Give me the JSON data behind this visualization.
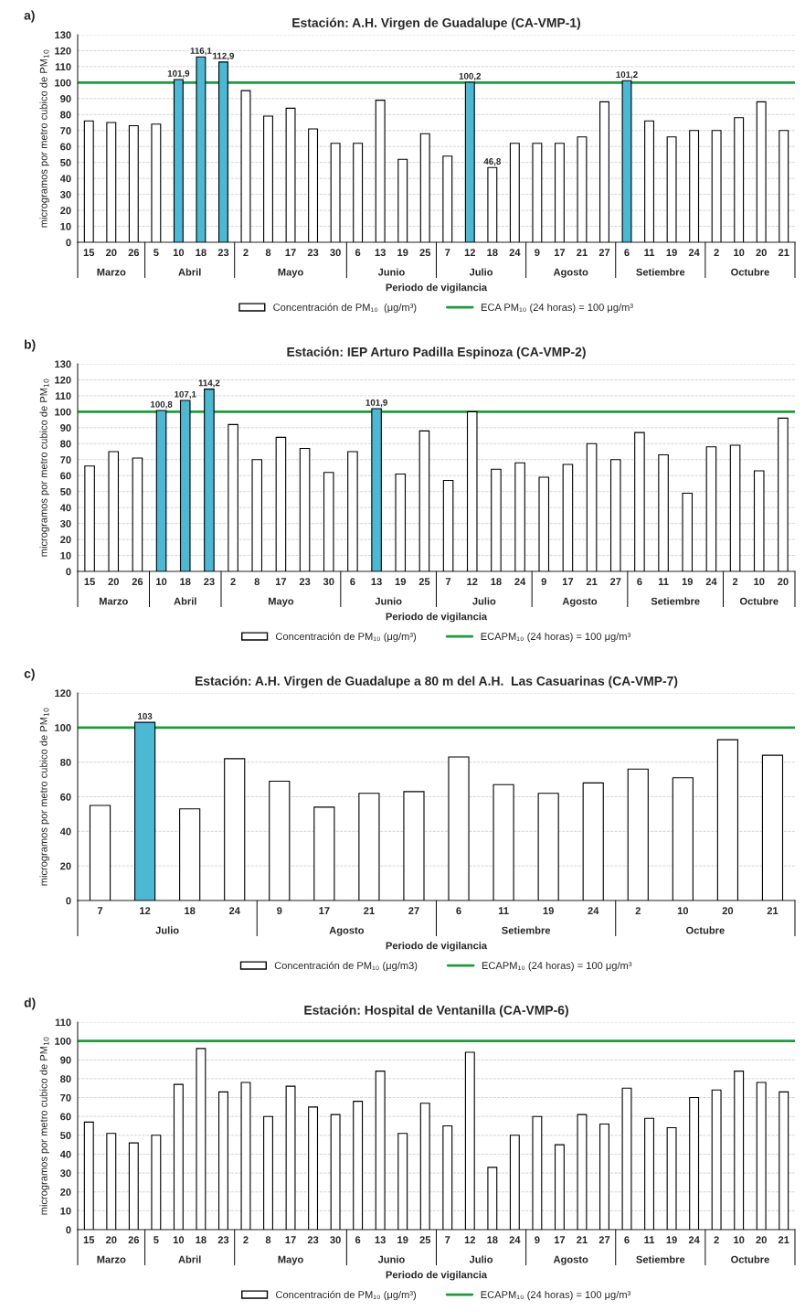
{
  "chart_data": [
    {
      "type": "bar",
      "title": "Estación: A.H. Virgen de Guadalupe (CA-VMP-1)",
      "xlabel": "Periodo de vigilancia",
      "ylabel": "microgramos por metro cubico de PM$_{10}$",
      "categories": [
        "15",
        "20",
        "26",
        "5",
        "10",
        "18",
        "23",
        "2",
        "8",
        "17",
        "23",
        "30",
        "6",
        "13",
        "19",
        "25",
        "7",
        "12",
        "18",
        "24",
        "9",
        "17",
        "21",
        "27",
        "6",
        "11",
        "19",
        "24",
        "2",
        "10",
        "20",
        "21"
      ],
      "series": [
        {
          "name": "Concentración de PM₁₀  (μg/m³)",
          "colors": [
            "#ffffff",
            "#ffffff",
            "#ffffff",
            "#ffffff",
            "#4bb8d4",
            "#4bb8d4",
            "#4bb8d4",
            "#ffffff",
            "#ffffff",
            "#ffffff",
            "#ffffff",
            "#ffffff",
            "#ffffff",
            "#ffffff",
            "#ffffff",
            "#ffffff",
            "#ffffff",
            "#4bb8d4",
            "#ffffff",
            "#ffffff",
            "#ffffff",
            "#ffffff",
            "#ffffff",
            "#ffffff",
            "#4bb8d4",
            "#ffffff",
            "#ffffff",
            "#ffffff",
            "#ffffff",
            "#ffffff",
            "#ffffff",
            "#ffffff"
          ],
          "values": [
            76,
            75,
            73,
            74,
            101.9,
            116.1,
            112.9,
            95,
            79,
            84,
            71,
            62,
            62,
            89,
            52,
            68,
            54,
            100.2,
            46.8,
            62,
            62,
            62,
            66,
            88,
            101.2,
            76,
            66,
            70,
            70,
            78,
            88,
            70
          ],
          "value_labels": [
            null,
            null,
            null,
            null,
            "101,9",
            "116,1",
            "112,9",
            null,
            null,
            null,
            null,
            null,
            null,
            null,
            null,
            null,
            null,
            "100,2",
            "46,8",
            null,
            null,
            null,
            null,
            null,
            "101,2",
            null,
            null,
            null,
            null,
            null,
            null,
            null
          ]
        }
      ],
      "ref_lines": [
        {
          "axis": "y",
          "value": 100,
          "label": "ECA PM₁₀ (24 horas) = 100 μg/m³",
          "color": "#1a9e3a"
        }
      ],
      "ylim": [
        0,
        130
      ],
      "yticks": [
        0,
        10,
        20,
        30,
        40,
        50,
        60,
        70,
        80,
        90,
        100,
        110,
        120,
        130
      ],
      "grid": "y",
      "legend": "bottom",
      "annotations": [
        "a)",
        "Marzo",
        "Abril",
        "Mayo",
        "Junio",
        "Julio",
        "Agosto",
        "Setiembre",
        "Octubre"
      ]
    },
    {
      "type": "bar",
      "title": "Estación: IEP Arturo Padilla Espinoza (CA-VMP-2)",
      "xlabel": "Periodo de vigilancia",
      "ylabel": "microgramos por metro cubico de PM$_{10}$",
      "categories": [
        "15",
        "20",
        "26",
        "10",
        "18",
        "23",
        "2",
        "8",
        "17",
        "23",
        "30",
        "6",
        "13",
        "19",
        "25",
        "7",
        "12",
        "18",
        "24",
        "9",
        "17",
        "21",
        "27",
        "6",
        "11",
        "19",
        "24",
        "2",
        "10",
        "20"
      ],
      "series": [
        {
          "name": "Concentración de PM₁₀ (μg/m³)",
          "colors": [
            "#ffffff",
            "#ffffff",
            "#ffffff",
            "#4bb8d4",
            "#4bb8d4",
            "#4bb8d4",
            "#ffffff",
            "#ffffff",
            "#ffffff",
            "#ffffff",
            "#ffffff",
            "#ffffff",
            "#4bb8d4",
            "#ffffff",
            "#ffffff",
            "#ffffff",
            "#ffffff",
            "#ffffff",
            "#ffffff",
            "#ffffff",
            "#ffffff",
            "#ffffff",
            "#ffffff",
            "#ffffff",
            "#ffffff",
            "#ffffff",
            "#ffffff",
            "#ffffff",
            "#ffffff",
            "#ffffff"
          ],
          "values": [
            66,
            75,
            71,
            100.8,
            107.1,
            114.2,
            92,
            70,
            84,
            77,
            62,
            75,
            101.9,
            61,
            88,
            57,
            100,
            64,
            68,
            59,
            67,
            80,
            70,
            87,
            73,
            49,
            78,
            79,
            63,
            96
          ],
          "value_labels": [
            null,
            null,
            null,
            "100,8",
            "107,1",
            "114,2",
            null,
            null,
            null,
            null,
            null,
            null,
            "101,9",
            null,
            null,
            null,
            null,
            null,
            null,
            null,
            null,
            null,
            null,
            null,
            null,
            null,
            null,
            null,
            null,
            null
          ]
        }
      ],
      "ref_lines": [
        {
          "axis": "y",
          "value": 100,
          "label": "ECAPM₁₀ (24 horas) = 100 μg/m³",
          "color": "#1a9e3a"
        }
      ],
      "ylim": [
        0,
        130
      ],
      "yticks": [
        0,
        10,
        20,
        30,
        40,
        50,
        60,
        70,
        80,
        90,
        100,
        110,
        120,
        130
      ],
      "grid": "y",
      "legend": "bottom",
      "annotations": [
        "b)",
        "Marzo",
        "Abril",
        "Mayo",
        "Junio",
        "Julio",
        "Agosto",
        "Setiembre",
        "Octubre"
      ]
    },
    {
      "type": "bar",
      "title": "Estación: A.H. Virgen de Guadalupe a 80 m del A.H.  Las Casuarinas (CA-VMP-7)",
      "xlabel": "Periodo de vigilancia",
      "ylabel": "microgramos por metro cubico de PM$_{10}$",
      "categories": [
        "7",
        "12",
        "18",
        "24",
        "9",
        "17",
        "21",
        "27",
        "6",
        "11",
        "19",
        "24",
        "2",
        "10",
        "20",
        "21"
      ],
      "series": [
        {
          "name": "Concentración de PM₁₀ (μg/m3)",
          "colors": [
            "#ffffff",
            "#4bb8d4",
            "#ffffff",
            "#ffffff",
            "#ffffff",
            "#ffffff",
            "#ffffff",
            "#ffffff",
            "#ffffff",
            "#ffffff",
            "#ffffff",
            "#ffffff",
            "#ffffff",
            "#ffffff",
            "#ffffff",
            "#ffffff"
          ],
          "values": [
            55,
            103,
            53,
            82,
            69,
            54,
            62,
            63,
            83,
            67,
            62,
            68,
            76,
            71,
            93,
            84
          ],
          "value_labels": [
            null,
            "103",
            null,
            null,
            null,
            null,
            null,
            null,
            null,
            null,
            null,
            null,
            null,
            null,
            null,
            null
          ]
        }
      ],
      "ref_lines": [
        {
          "axis": "y",
          "value": 100,
          "label": "ECAPM₁₀ (24 horas) = 100 μg/m³",
          "color": "#1a9e3a"
        }
      ],
      "ylim": [
        0,
        120
      ],
      "yticks": [
        0,
        20,
        40,
        60,
        80,
        100,
        120
      ],
      "grid": "y",
      "legend": "bottom",
      "annotations": [
        "c)",
        "Julio",
        "Agosto",
        "Setiembre",
        "Octubre"
      ]
    },
    {
      "type": "bar",
      "title": "Estación: Hospital de Ventanilla (CA-VMP-6)",
      "xlabel": "Periodo de vigilancia",
      "ylabel": "microgramos por metro cubico de PM$_{10}$",
      "categories": [
        "15",
        "20",
        "26",
        "5",
        "10",
        "18",
        "23",
        "2",
        "8",
        "17",
        "23",
        "30",
        "6",
        "13",
        "19",
        "25",
        "7",
        "12",
        "18",
        "24",
        "9",
        "17",
        "21",
        "27",
        "6",
        "11",
        "19",
        "24",
        "2",
        "10",
        "20",
        "21"
      ],
      "series": [
        {
          "name": "Concentración de PM₁₀ (μg/m³)",
          "colors": [
            "#ffffff",
            "#ffffff",
            "#ffffff",
            "#ffffff",
            "#ffffff",
            "#ffffff",
            "#ffffff",
            "#ffffff",
            "#ffffff",
            "#ffffff",
            "#ffffff",
            "#ffffff",
            "#ffffff",
            "#ffffff",
            "#ffffff",
            "#ffffff",
            "#ffffff",
            "#ffffff",
            "#ffffff",
            "#ffffff",
            "#ffffff",
            "#ffffff",
            "#ffffff",
            "#ffffff",
            "#ffffff",
            "#ffffff",
            "#ffffff",
            "#ffffff",
            "#ffffff",
            "#ffffff",
            "#ffffff",
            "#ffffff"
          ],
          "values": [
            57,
            51,
            46,
            50,
            77,
            96,
            73,
            78,
            60,
            76,
            65,
            61,
            68,
            84,
            51,
            67,
            55,
            94,
            33,
            50,
            60,
            45,
            61,
            56,
            75,
            59,
            54,
            70,
            74,
            84,
            78,
            73
          ]
        }
      ],
      "ref_lines": [
        {
          "axis": "y",
          "value": 100,
          "label": "ECAPM₁₀ (24 horas) = 100 μg/m³",
          "color": "#1a9e3a"
        }
      ],
      "ylim": [
        0,
        110
      ],
      "yticks": [
        0,
        10,
        20,
        30,
        40,
        50,
        60,
        70,
        80,
        90,
        100,
        110
      ],
      "grid": "y",
      "legend": "bottom",
      "annotations": [
        "d)",
        "Marzo",
        "Abril",
        "Mayo",
        "Junio",
        "Julio",
        "Agosto",
        "Setiembre",
        "Octubre"
      ]
    }
  ]
}
